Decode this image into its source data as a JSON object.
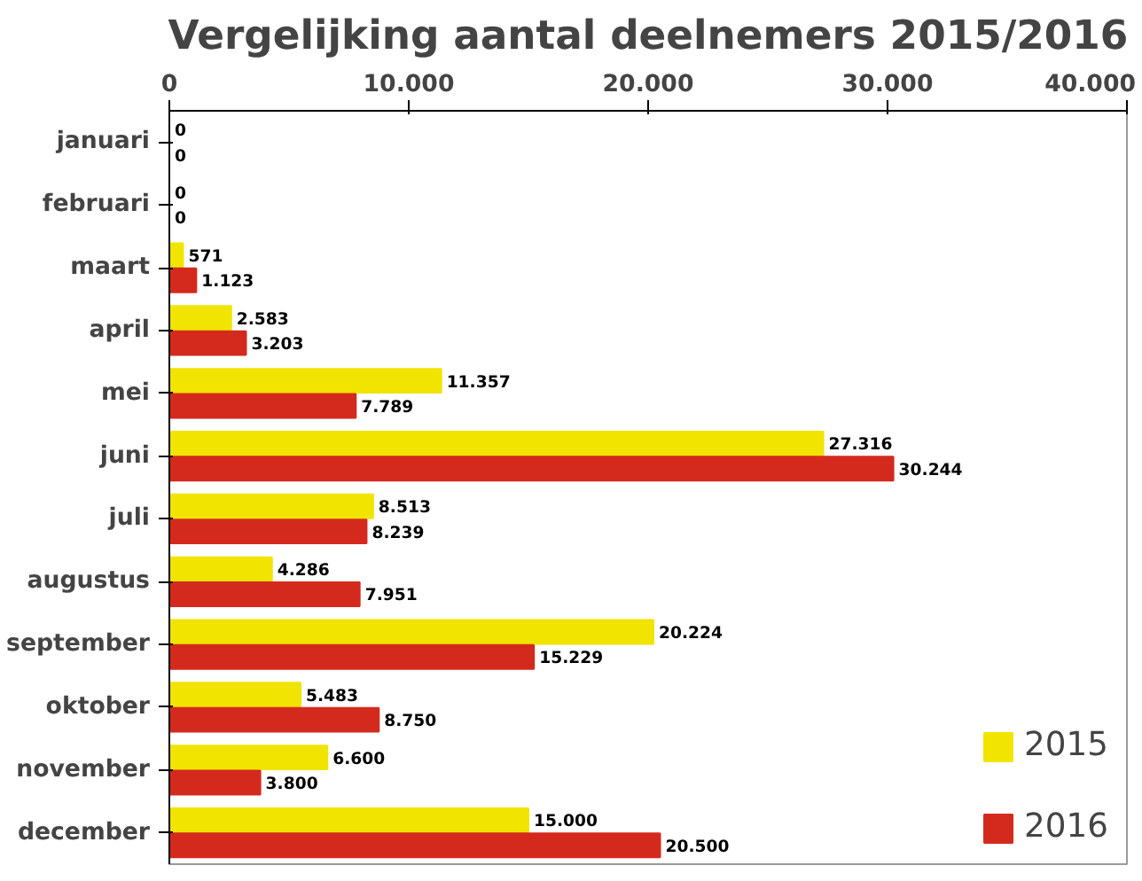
{
  "chart_data": {
    "type": "bar",
    "orientation": "horizontal",
    "title": "Vergelijking aantal deelnemers 2015/2016",
    "categories": [
      "januari",
      "februari",
      "maart",
      "april",
      "mei",
      "juni",
      "juli",
      "augustus",
      "september",
      "oktober",
      "november",
      "december"
    ],
    "series": [
      {
        "name": "2015",
        "color": "#f0e400",
        "values": [
          0,
          0,
          571,
          2583,
          11357,
          27316,
          8513,
          4286,
          20224,
          5483,
          6600,
          15000
        ],
        "value_labels": [
          "0",
          "0",
          "571",
          "2.583",
          "11.357",
          "27.316",
          "8.513",
          "4.286",
          "20.224",
          "5.483",
          "6.600",
          "15.000"
        ]
      },
      {
        "name": "2016",
        "color": "#d42a1e",
        "values": [
          0,
          0,
          1123,
          3203,
          7789,
          30244,
          8239,
          7951,
          15229,
          8750,
          3800,
          20500
        ],
        "value_labels": [
          "0",
          "0",
          "1.123",
          "3.203",
          "7.789",
          "30.244",
          "8.239",
          "7.951",
          "15.229",
          "8.750",
          "3.800",
          "20.500"
        ]
      }
    ],
    "xlim": [
      0,
      40000
    ],
    "xticks": [
      0,
      {
        "value": 10000,
        "label": "10.000"
      },
      {
        "value": 20000,
        "label": "20.000"
      },
      {
        "value": 30000,
        "label": "30.000"
      },
      {
        "value": 40000,
        "label": "40.000"
      }
    ],
    "grid": false,
    "legend": "bottom right"
  }
}
